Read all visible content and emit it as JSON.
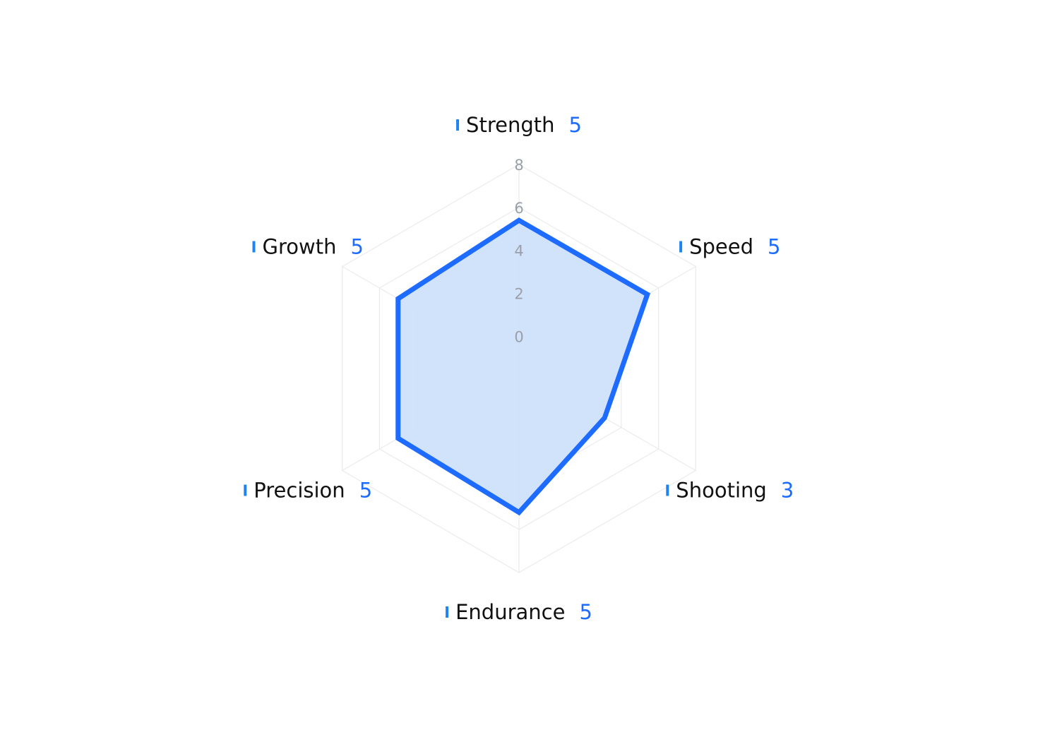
{
  "chart_data": {
    "type": "radar",
    "title": "",
    "categories": [
      "Strength",
      "Speed",
      "Shooting",
      "Endurance",
      "Precision",
      "Growth"
    ],
    "series": [
      {
        "values": [
          5,
          5,
          3,
          5,
          5,
          5
        ]
      }
    ],
    "plotted_values": [
      5.4,
      5.4,
      3.1,
      5.2,
      5.0,
      5.0
    ],
    "r_min": -1.5,
    "r_max": 8,
    "r_ticks": [
      0,
      2,
      4,
      6,
      8
    ],
    "grid": true,
    "legend": "none",
    "colors": {
      "series_line": "#1e6bff",
      "series_fill": "#cfe0fb",
      "grid": "#ebebeb",
      "tick_label": "#9aa0ab",
      "axis_marker": "#1f84f0",
      "value_text": "#1e6bff",
      "label_text": "#111111"
    }
  }
}
